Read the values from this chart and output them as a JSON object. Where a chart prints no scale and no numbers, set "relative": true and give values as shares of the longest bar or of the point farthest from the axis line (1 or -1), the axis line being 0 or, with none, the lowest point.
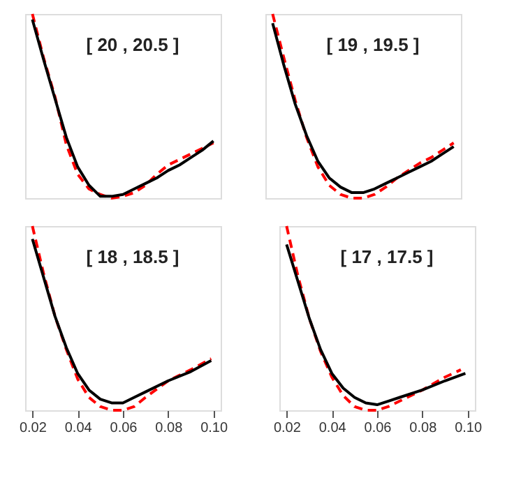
{
  "chart_data": [
    {
      "type": "line",
      "relative": true,
      "annotations": [
        "[ 20 , 20.5 ]"
      ],
      "categories": [
        null,
        null,
        null,
        null,
        null,
        null,
        null,
        null,
        null,
        null,
        null,
        null,
        null,
        null,
        null,
        null,
        null
      ],
      "tick_labels": false,
      "legend": false,
      "series": [
        {
          "color": "#ff0000",
          "line_style": "dashed",
          "values": [
            1.0,
            0.76,
            0.55,
            0.29,
            0.13,
            0.05,
            0.02,
            0,
            0.01,
            0.03,
            0.07,
            0.13,
            0.18,
            0.21,
            0.24,
            0.27,
            0.3
          ]
        },
        {
          "color": "#000000",
          "line_style": "solid",
          "values": [
            0.97,
            0.75,
            0.54,
            0.33,
            0.17,
            0.07,
            0.01,
            0.01,
            0.02,
            0.05,
            0.08,
            0.11,
            0.15,
            0.18,
            0.22,
            0.26,
            0.31
          ]
        }
      ]
    },
    {
      "type": "line",
      "relative": true,
      "annotations": [
        "[ 19 , 19.5 ]"
      ],
      "categories": [
        null,
        null,
        null,
        null,
        null,
        null,
        null,
        null,
        null,
        null,
        null,
        null,
        null,
        null,
        null,
        null,
        null
      ],
      "tick_labels": false,
      "legend": false,
      "series": [
        {
          "color": "#ff0000",
          "line_style": "dashed",
          "values": [
            1.0,
            0.76,
            0.53,
            0.33,
            0.17,
            0.07,
            0.02,
            0,
            0,
            0.02,
            0.06,
            0.11,
            0.15,
            0.19,
            0.22,
            0.26,
            0.3
          ]
        },
        {
          "color": "#000000",
          "line_style": "solid",
          "values": [
            0.95,
            0.72,
            0.51,
            0.34,
            0.2,
            0.11,
            0.06,
            0.03,
            0.03,
            0.05,
            0.08,
            0.11,
            0.14,
            0.17,
            0.2,
            0.24,
            0.28
          ]
        }
      ]
    },
    {
      "type": "line",
      "relative": true,
      "annotations": [
        "[ 18 , 18.5 ]"
      ],
      "xlim": [
        0.0168,
        0.1032
      ],
      "xticks": [
        {
          "value": 0.02,
          "label": "0.02"
        },
        {
          "value": 0.04,
          "label": "0.04"
        },
        {
          "value": 0.06,
          "label": "0.06"
        },
        {
          "value": 0.08,
          "label": "0.08"
        },
        {
          "value": 0.1,
          "label": "0.10"
        }
      ],
      "tick_labels": "x",
      "legend": false,
      "series": [
        {
          "color": "#ff0000",
          "line_style": "dashed",
          "x": [
            0.02,
            0.025,
            0.03,
            0.035,
            0.04,
            0.045,
            0.05,
            0.055,
            0.06,
            0.065,
            0.07,
            0.08,
            0.09,
            0.099
          ],
          "values": [
            1.0,
            0.74,
            0.51,
            0.33,
            0.17,
            0.07,
            0.02,
            0,
            0,
            0.02,
            0.07,
            0.16,
            0.22,
            0.28
          ]
        },
        {
          "color": "#000000",
          "line_style": "solid",
          "x": [
            0.02,
            0.025,
            0.03,
            0.035,
            0.04,
            0.045,
            0.05,
            0.055,
            0.06,
            0.065,
            0.07,
            0.08,
            0.09,
            0.099
          ],
          "values": [
            0.93,
            0.72,
            0.51,
            0.34,
            0.2,
            0.11,
            0.06,
            0.04,
            0.04,
            0.07,
            0.1,
            0.16,
            0.21,
            0.27
          ]
        }
      ]
    },
    {
      "type": "line",
      "relative": true,
      "annotations": [
        "[ 17 , 17.5 ]"
      ],
      "xlim": [
        0.0168,
        0.1032
      ],
      "xticks": [
        {
          "value": 0.02,
          "label": "0.02"
        },
        {
          "value": 0.04,
          "label": "0.04"
        },
        {
          "value": 0.06,
          "label": "0.06"
        },
        {
          "value": 0.08,
          "label": "0.08"
        },
        {
          "value": 0.1,
          "label": "0.10"
        }
      ],
      "tick_labels": "x",
      "legend": false,
      "series": [
        {
          "color": "#ff0000",
          "line_style": "dashed",
          "x": [
            0.02,
            0.025,
            0.03,
            0.035,
            0.04,
            0.045,
            0.05,
            0.055,
            0.06,
            0.065,
            0.07,
            0.08,
            0.09,
            0.097
          ],
          "values": [
            1.0,
            0.73,
            0.5,
            0.32,
            0.18,
            0.08,
            0.02,
            0,
            0,
            0.02,
            0.05,
            0.11,
            0.18,
            0.22
          ]
        },
        {
          "color": "#000000",
          "line_style": "solid",
          "x": [
            0.02,
            0.025,
            0.03,
            0.035,
            0.04,
            0.045,
            0.05,
            0.055,
            0.06,
            0.065,
            0.07,
            0.08,
            0.09,
            0.099
          ],
          "values": [
            0.9,
            0.7,
            0.5,
            0.33,
            0.2,
            0.12,
            0.07,
            0.04,
            0.03,
            0.05,
            0.07,
            0.11,
            0.16,
            0.2
          ]
        }
      ]
    }
  ]
}
